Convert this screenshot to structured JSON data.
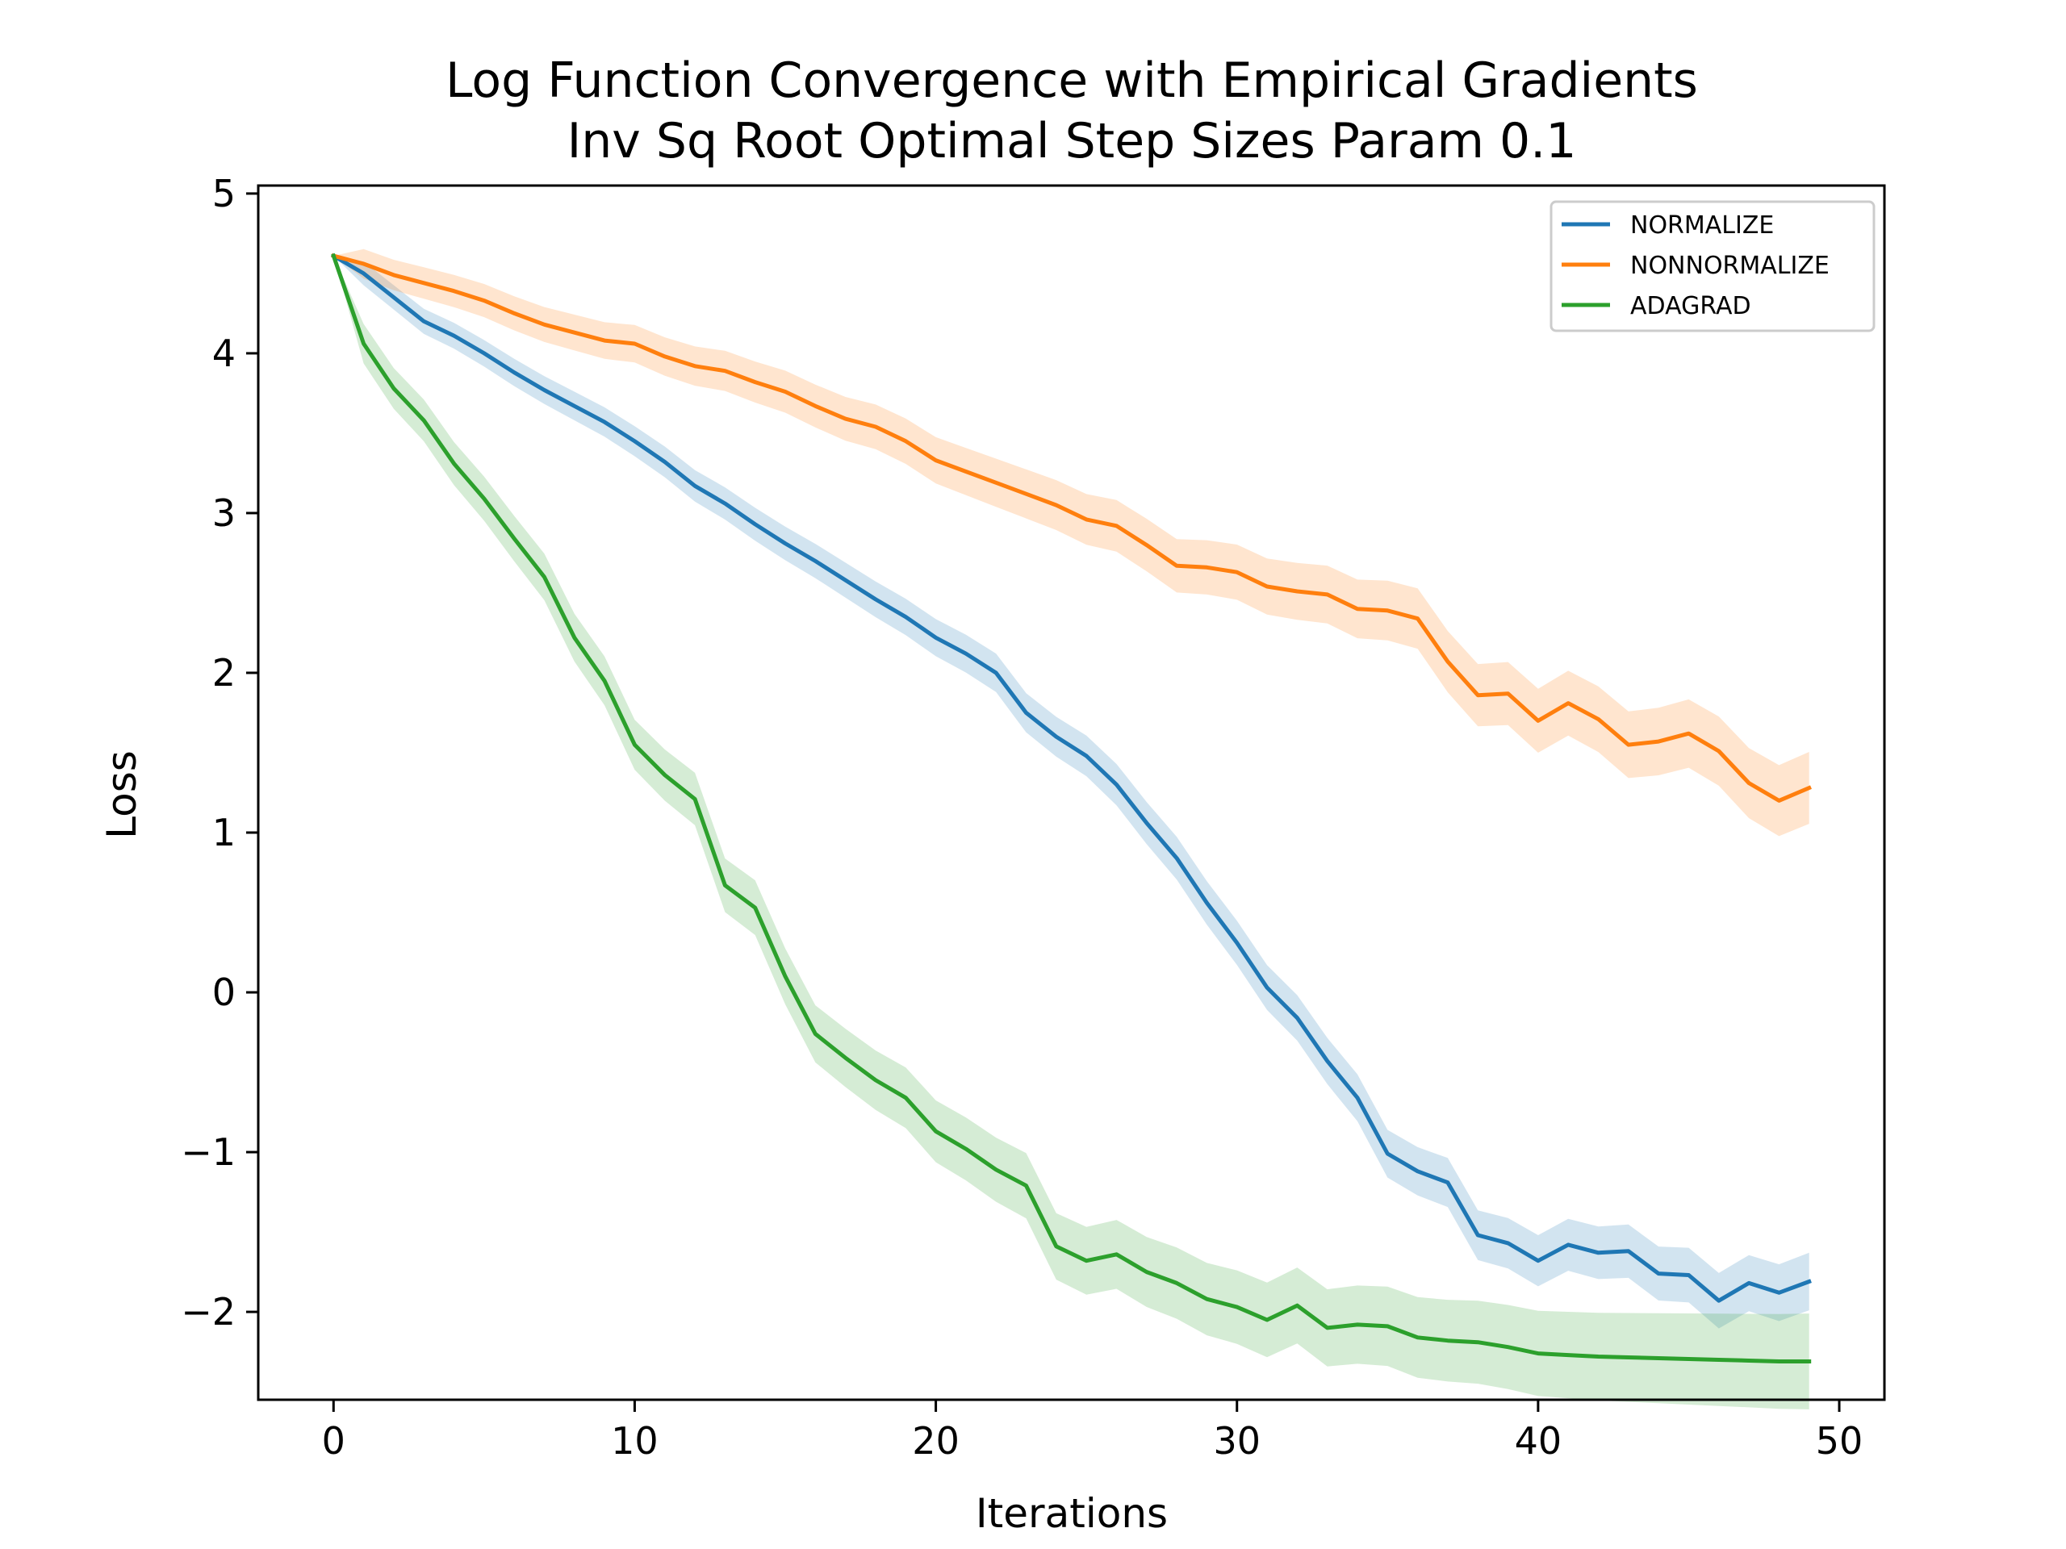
{
  "chart_data": {
    "type": "line",
    "title": "Log Function Convergence with Empirical Gradients",
    "subtitle": "Inv Sq Root Optimal Step Sizes Param 0.1",
    "xlabel": "Iterations",
    "ylabel": "Loss",
    "xlim": [
      -2.5,
      51.5
    ],
    "ylim": [
      -2.55,
      5.05
    ],
    "xticks": [
      0,
      10,
      20,
      30,
      40,
      50
    ],
    "yticks": [
      -2,
      -1,
      0,
      1,
      2,
      3,
      4,
      5
    ],
    "xtick_labels": [
      "0",
      "10",
      "20",
      "30",
      "40",
      "50"
    ],
    "ytick_labels": [
      "−2",
      "−1",
      "0",
      "1",
      "2",
      "3",
      "4",
      "5"
    ],
    "grid": false,
    "legend_position": "top-right",
    "x": [
      0,
      1,
      2,
      3,
      4,
      5,
      6,
      7,
      8,
      9,
      10,
      11,
      12,
      13,
      14,
      15,
      16,
      17,
      18,
      19,
      20,
      21,
      22,
      23,
      24,
      25,
      26,
      27,
      28,
      29,
      30,
      31,
      32,
      33,
      34,
      35,
      36,
      37,
      38,
      39,
      40,
      41,
      42,
      43,
      44,
      45,
      46,
      47,
      48,
      49
    ],
    "series": [
      {
        "name": "NORMALIZE",
        "color": "#1f77b4",
        "values": [
          4.61,
          4.5,
          4.35,
          4.2,
          4.11,
          4.0,
          3.88,
          3.77,
          3.67,
          3.57,
          3.45,
          3.32,
          3.17,
          3.06,
          2.93,
          2.81,
          2.7,
          2.58,
          2.46,
          2.35,
          2.22,
          2.12,
          2.0,
          1.75,
          1.6,
          1.48,
          1.3,
          1.06,
          0.84,
          0.56,
          0.31,
          0.03,
          -0.16,
          -0.43,
          -0.66,
          -1.01,
          -1.12,
          -1.19,
          -1.52,
          -1.57,
          -1.68,
          -1.58,
          -1.63,
          -1.62,
          -1.76,
          -1.77,
          -1.93,
          -1.82,
          -1.88,
          -1.81
        ],
        "band": 0.12
      },
      {
        "name": "NONNORMALIZE",
        "color": "#ff7f0e",
        "values": [
          4.61,
          4.56,
          4.49,
          4.44,
          4.39,
          4.33,
          4.25,
          4.18,
          4.13,
          4.08,
          4.06,
          3.98,
          3.92,
          3.89,
          3.82,
          3.76,
          3.67,
          3.59,
          3.54,
          3.45,
          3.33,
          3.26,
          3.19,
          3.12,
          3.05,
          2.96,
          2.92,
          2.8,
          2.67,
          2.66,
          2.63,
          2.54,
          2.51,
          2.49,
          2.4,
          2.39,
          2.34,
          2.07,
          1.86,
          1.87,
          1.7,
          1.81,
          1.71,
          1.55,
          1.57,
          1.62,
          1.51,
          1.31,
          1.2,
          1.28
        ],
        "band": 0.15
      },
      {
        "name": "ADAGRAD",
        "color": "#2ca02c",
        "values": [
          4.61,
          4.06,
          3.78,
          3.58,
          3.31,
          3.09,
          2.84,
          2.6,
          2.22,
          1.95,
          1.55,
          1.36,
          1.21,
          0.67,
          0.53,
          0.1,
          -0.26,
          -0.41,
          -0.55,
          -0.66,
          -0.87,
          -0.98,
          -1.11,
          -1.21,
          -1.59,
          -1.68,
          -1.64,
          -1.75,
          -1.82,
          -1.92,
          -1.97,
          -2.05,
          -1.96,
          -2.1,
          -2.08,
          -2.09,
          -2.16,
          -2.18,
          -2.19,
          -2.22,
          -2.26,
          -2.27,
          -2.28,
          -2.285,
          -2.29,
          -2.295,
          -2.3,
          -2.305,
          -2.31,
          -2.31
        ],
        "band": 0.2
      }
    ]
  }
}
